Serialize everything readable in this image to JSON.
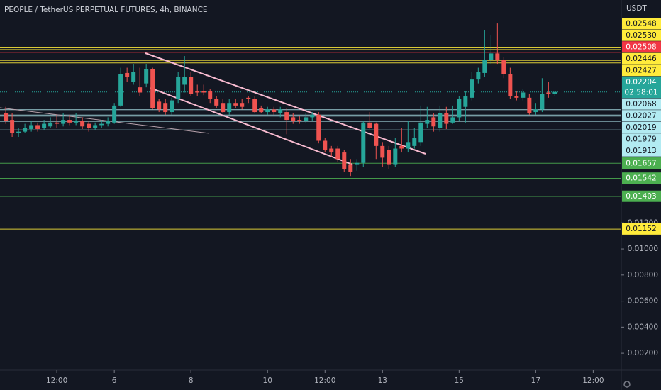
{
  "chart_data": {
    "type": "candlestick",
    "title": "PEOPLE / TetherUS PERPETUAL FUTURES, 4h, BINANCE",
    "currency": "USDT",
    "up_color": "#26a69a",
    "down_color": "#ef5350",
    "open": [
      0.0204,
      0.0199,
      0.0189,
      0.019,
      0.0192,
      0.0195,
      0.0193,
      0.0194,
      0.0197,
      0.0196,
      0.0199,
      0.0197,
      0.0198,
      0.0196,
      0.0193,
      0.0195,
      0.0196,
      0.0197,
      0.021,
      0.0235,
      0.0228,
      0.0224,
      0.0227,
      0.0238,
      0.0213,
      0.0212,
      0.0205,
      0.0215,
      0.0226,
      0.0232,
      0.0221,
      0.0221,
      0.0221,
      0.0215,
      0.0212,
      0.0205,
      0.0212,
      0.0212,
      0.0216,
      0.0215,
      0.0208,
      0.0205,
      0.0207,
      0.0204,
      0.0205,
      0.0201,
      0.0199,
      0.0198,
      0.0201,
      0.0203,
      0.0183,
      0.0177,
      0.0177,
      0.0174,
      0.0165,
      0.0165,
      0.0166,
      0.0197,
      0.0196,
      0.0179,
      0.0176,
      0.0165,
      0.0179,
      0.0177,
      0.0179,
      0.0182,
      0.0196,
      0.0201,
      0.0193,
      0.0204,
      0.0197,
      0.0201,
      0.0209,
      0.0216,
      0.023,
      0.0235,
      0.0245,
      0.025,
      0.0245,
      0.0234,
      0.0217,
      0.0216,
      0.0216,
      0.0205,
      0.0207,
      0.022,
      0.0219
    ],
    "high": [
      0.0209,
      0.0204,
      0.0193,
      0.0196,
      0.0198,
      0.0197,
      0.0199,
      0.0201,
      0.0203,
      0.0204,
      0.0203,
      0.0204,
      0.0201,
      0.0198,
      0.0197,
      0.0199,
      0.0201,
      0.0212,
      0.0239,
      0.0239,
      0.0242,
      0.0239,
      0.0242,
      0.0239,
      0.0215,
      0.0215,
      0.0216,
      0.0236,
      0.0248,
      0.0236,
      0.0226,
      0.0226,
      0.0223,
      0.0217,
      0.0215,
      0.0215,
      0.0215,
      0.0215,
      0.0217,
      0.0217,
      0.021,
      0.0209,
      0.0209,
      0.0209,
      0.0208,
      0.0204,
      0.0202,
      0.0204,
      0.0205,
      0.0205,
      0.0185,
      0.0179,
      0.0179,
      0.0176,
      0.0169,
      0.0169,
      0.0198,
      0.0205,
      0.0197,
      0.0182,
      0.0179,
      0.0185,
      0.0193,
      0.0198,
      0.0193,
      0.021,
      0.0209,
      0.0204,
      0.021,
      0.0209,
      0.021,
      0.0217,
      0.0221,
      0.0236,
      0.0239,
      0.0268,
      0.0264,
      0.0273,
      0.0247,
      0.0239,
      0.0221,
      0.0223,
      0.0219,
      0.0212,
      0.0231,
      0.0228,
      0.0221
    ],
    "low": [
      0.0196,
      0.0186,
      0.0186,
      0.0189,
      0.019,
      0.019,
      0.0191,
      0.0193,
      0.0193,
      0.0194,
      0.0195,
      0.0195,
      0.0192,
      0.019,
      0.0191,
      0.0193,
      0.0194,
      0.0196,
      0.0209,
      0.0228,
      0.0226,
      0.0217,
      0.0224,
      0.0207,
      0.0205,
      0.0203,
      0.0203,
      0.0212,
      0.022,
      0.0217,
      0.0217,
      0.0218,
      0.0212,
      0.0208,
      0.0204,
      0.0203,
      0.0208,
      0.0207,
      0.0212,
      0.0204,
      0.0204,
      0.0203,
      0.0203,
      0.0201,
      0.0188,
      0.0196,
      0.0196,
      0.0197,
      0.0198,
      0.0181,
      0.0174,
      0.0171,
      0.0167,
      0.0159,
      0.0156,
      0.016,
      0.0163,
      0.0192,
      0.0169,
      0.0163,
      0.0161,
      0.0163,
      0.0174,
      0.0174,
      0.0177,
      0.0179,
      0.0193,
      0.019,
      0.019,
      0.0192,
      0.0196,
      0.0198,
      0.0197,
      0.0214,
      0.0227,
      0.0232,
      0.0242,
      0.0242,
      0.0231,
      0.0215,
      0.0214,
      0.0214,
      0.0203,
      0.0203,
      0.0205,
      0.0216,
      0.0217
    ],
    "close": [
      0.0198,
      0.0189,
      0.019,
      0.0193,
      0.0195,
      0.0192,
      0.0196,
      0.0197,
      0.0196,
      0.0199,
      0.0197,
      0.0198,
      0.0194,
      0.0193,
      0.0195,
      0.0196,
      0.0198,
      0.021,
      0.0234,
      0.0232,
      0.0236,
      0.022,
      0.0238,
      0.0208,
      0.0207,
      0.0205,
      0.0214,
      0.0232,
      0.0232,
      0.0219,
      0.022,
      0.022,
      0.0215,
      0.021,
      0.0205,
      0.0212,
      0.021,
      0.0209,
      0.0215,
      0.0205,
      0.0205,
      0.0207,
      0.0205,
      0.0207,
      0.0199,
      0.0198,
      0.0198,
      0.0201,
      0.0203,
      0.0183,
      0.0176,
      0.0174,
      0.0169,
      0.0161,
      0.0159,
      0.0166,
      0.0197,
      0.0193,
      0.0179,
      0.017,
      0.0165,
      0.0177,
      0.0177,
      0.0182,
      0.0185,
      0.0197,
      0.0199,
      0.0194,
      0.0204,
      0.0196,
      0.0201,
      0.0215,
      0.0217,
      0.023,
      0.0236,
      0.0245,
      0.025,
      0.0245,
      0.0234,
      0.0217,
      0.0216,
      0.022,
      0.0204,
      0.0207,
      0.0219,
      0.0219,
      0.02204
    ],
    "xlim": [
      -0.9,
      96.4
    ],
    "xticks": [
      {
        "value": 8,
        "label": "12:00"
      },
      {
        "value": 17,
        "label": "6"
      },
      {
        "value": 29,
        "label": "8"
      },
      {
        "value": 41,
        "label": "10"
      },
      {
        "value": 50,
        "label": "12:00"
      },
      {
        "value": 59,
        "label": "13"
      },
      {
        "value": 71,
        "label": "15"
      },
      {
        "value": 83,
        "label": "17"
      },
      {
        "value": 92,
        "label": "12:00"
      }
    ],
    "ylim": [
      0.0007,
      0.0291
    ],
    "yticks": [
      {
        "value": 0.012,
        "label": "0.01200"
      },
      {
        "value": 0.01,
        "label": "0.01000"
      },
      {
        "value": 0.008,
        "label": "0.00800"
      },
      {
        "value": 0.006,
        "label": "0.00600"
      },
      {
        "value": 0.004,
        "label": "0.00400"
      },
      {
        "value": 0.002,
        "label": "0.00200"
      }
    ],
    "levels": [
      {
        "value": 0.02548,
        "label": "0.02548",
        "color": "#ffeb3b"
      },
      {
        "value": 0.0253,
        "label": "0.02530",
        "color": "#ffeb3b"
      },
      {
        "value": 0.02508,
        "label": "0.02508",
        "color": "#f23645"
      },
      {
        "value": 0.02446,
        "label": "0.02446",
        "color": "#ffeb3b"
      },
      {
        "value": 0.02427,
        "label": "0.02427",
        "color": "#ffeb3b"
      },
      {
        "value": 0.02068,
        "label": "0.02068",
        "color": "#b2ebf2"
      },
      {
        "value": 0.02027,
        "label": "0.02027",
        "color": "#b2ebf2"
      },
      {
        "value": 0.02019,
        "label": "0.02019",
        "color": "#b2ebf2"
      },
      {
        "value": 0.01979,
        "label": "0.01979",
        "color": "#b2ebf2"
      },
      {
        "value": 0.01913,
        "label": "0.01913",
        "color": "#b2ebf2"
      },
      {
        "value": 0.01657,
        "label": "0.01657",
        "color": "#4caf50"
      },
      {
        "value": 0.01542,
        "label": "0.01542",
        "color": "#4caf50"
      },
      {
        "value": 0.01403,
        "label": "0.01403",
        "color": "#4caf50"
      },
      {
        "value": 0.01152,
        "label": "0.01152",
        "color": "#ffeb3b"
      }
    ],
    "last_price": {
      "value": 0.02204,
      "label": "0.02204",
      "countdown": "02:58:01",
      "color": "#26a69a"
    }
  }
}
